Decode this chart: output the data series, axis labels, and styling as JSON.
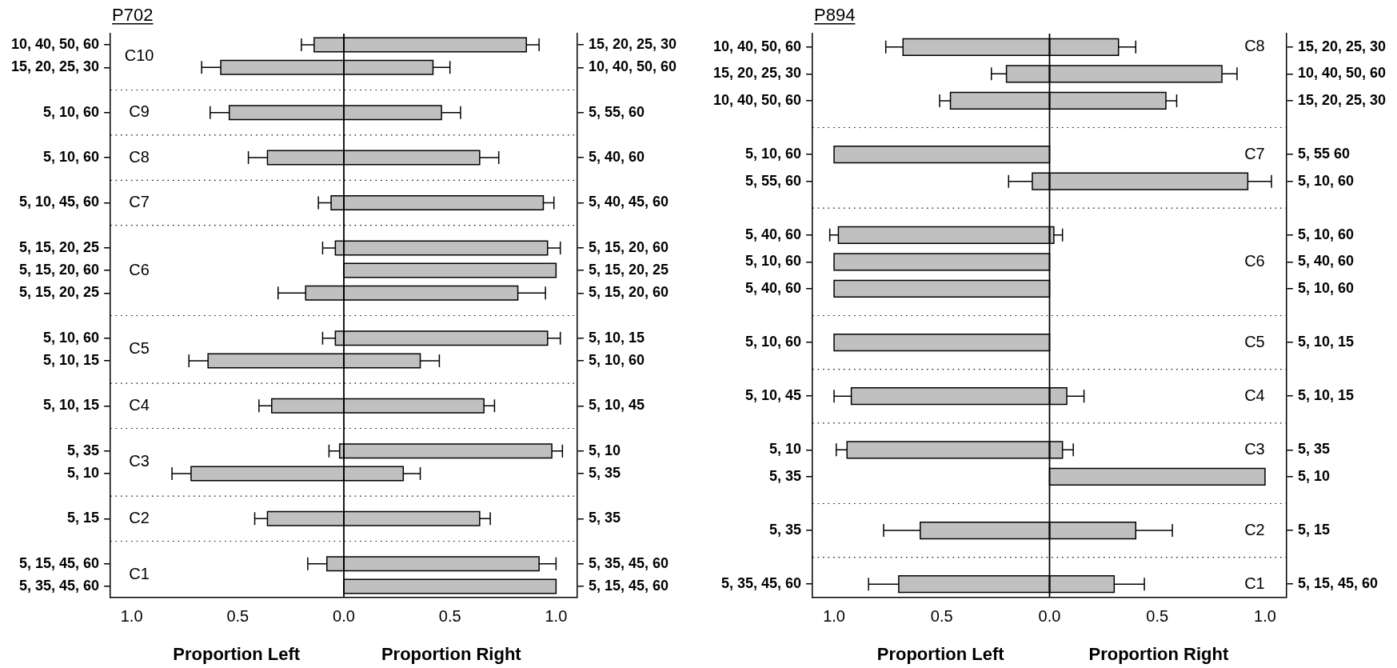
{
  "chart_data": [
    {
      "type": "bar",
      "orientation": "horizontal",
      "stacked": true,
      "title": "P702",
      "xlabel": "Proportion Left",
      "legend": false,
      "grid": false,
      "categories": [
        "10, 40, 50, 60",
        "15, 20, 25, 30",
        null,
        "5, 10, 60",
        null,
        "5, 10, 60",
        null,
        "5, 10, 45, 60",
        null,
        "5, 15, 20, 25",
        "5, 15, 20, 60",
        "5, 15, 20, 25",
        null,
        "5, 10, 60",
        "5, 10, 15",
        null,
        "5, 10, 15",
        null,
        "5, 35",
        "5, 10",
        null,
        "5, 15",
        null,
        "5, 15, 45, 60",
        "5, 35, 45, 60"
      ],
      "y2_categories": [
        "15, 20, 25, 30",
        "10, 40, 50, 60",
        null,
        "5, 55, 60",
        null,
        "5, 40, 60",
        null,
        "5, 40, 45, 60",
        null,
        "5, 15, 20, 60",
        "5, 15, 20, 25",
        "5, 15, 20, 60",
        null,
        "5, 10, 15",
        "5, 10, 60",
        null,
        "5, 10, 45",
        null,
        "5, 10",
        "5, 35",
        null,
        "5, 35",
        null,
        "5, 35, 45, 60",
        "5, 15, 45, 60"
      ],
      "series": [
        {
          "color": "#c0c0c0",
          "values": [
            -0.14,
            -0.58,
            null,
            -0.54,
            null,
            -0.36,
            null,
            -0.06,
            null,
            -0.04,
            0,
            -0.18,
            null,
            -0.04,
            -0.64,
            null,
            -0.34,
            null,
            -0.02,
            -0.72,
            null,
            -0.36,
            null,
            -0.08,
            0
          ],
          "errors": [
            [
              -0.2,
              -0.14
            ],
            [
              -0.67,
              -0.58
            ],
            null,
            [
              -0.63,
              -0.54
            ],
            null,
            [
              -0.45,
              -0.36
            ],
            null,
            [
              -0.12,
              -0.06
            ],
            null,
            [
              -0.1,
              -0.04
            ],
            null,
            [
              -0.31,
              -0.18
            ],
            null,
            [
              -0.1,
              -0.04
            ],
            [
              -0.73,
              -0.64
            ],
            null,
            [
              -0.4,
              -0.34
            ],
            null,
            [
              -0.07,
              -0.02
            ],
            [
              -0.81,
              -0.72
            ],
            null,
            [
              -0.42,
              -0.36
            ],
            null,
            [
              -0.17,
              -0.08
            ],
            null
          ]
        },
        {
          "color": "#c0c0c0",
          "values": [
            0.86,
            0.42,
            null,
            0.46,
            null,
            0.64,
            null,
            0.94,
            null,
            0.96,
            1.0,
            0.82,
            null,
            0.96,
            0.36,
            null,
            0.66,
            null,
            0.98,
            0.28,
            null,
            0.64,
            null,
            0.92,
            1.0
          ],
          "errors": [
            [
              0.86,
              0.92
            ],
            [
              0.42,
              0.5
            ],
            null,
            [
              0.46,
              0.55
            ],
            null,
            [
              0.64,
              0.73
            ],
            null,
            [
              0.94,
              0.99
            ],
            null,
            [
              0.96,
              1.02
            ],
            null,
            [
              0.82,
              0.95
            ],
            null,
            [
              0.96,
              1.02
            ],
            [
              0.36,
              0.45
            ],
            null,
            [
              0.66,
              0.71
            ],
            null,
            [
              0.98,
              1.03
            ],
            [
              0.28,
              0.36
            ],
            null,
            [
              0.64,
              0.69
            ],
            null,
            [
              0.92,
              1.0
            ],
            null
          ]
        }
      ],
      "xlim": [
        -1.1,
        1.1
      ],
      "xticks": [
        {
          "value": -1,
          "label": "1.0"
        },
        {
          "value": -0.5,
          "label": "0.5"
        },
        {
          "value": 0,
          "label": "0.0"
        },
        {
          "value": 0.5,
          "label": "0.5"
        },
        {
          "value": 1,
          "label": "1.0"
        }
      ],
      "ref_lines": [
        {
          "axis": "x",
          "value": 0
        }
      ],
      "annotations": [
        "Proportion Right",
        "C10",
        "C9",
        "C8",
        "C7",
        "C6",
        "C5",
        "C4",
        "C3",
        "C2",
        "C1"
      ]
    },
    {
      "type": "bar",
      "orientation": "horizontal",
      "stacked": true,
      "title": "P894",
      "xlabel": "Proportion Left",
      "legend": false,
      "grid": false,
      "categories": [
        "10, 40, 50, 60",
        "15, 20, 25, 30",
        "10, 40, 50, 60",
        null,
        "5, 10, 60",
        "5, 55, 60",
        null,
        "5, 40, 60",
        "5, 10, 60",
        "5, 40, 60",
        null,
        "5, 10, 60",
        null,
        "5, 10, 45",
        null,
        "5, 10",
        "5, 35",
        null,
        "5, 35",
        null,
        "5, 35, 45, 60"
      ],
      "y2_categories": [
        "15, 20, 25, 30",
        "10, 40, 50, 60",
        "15, 20, 25, 30",
        null,
        "5, 55 60",
        "5, 10, 60",
        null,
        "5, 10, 60",
        "5, 40, 60",
        "5, 10, 60",
        null,
        "5, 10, 15",
        null,
        "5, 10, 15",
        null,
        "5, 35",
        "5, 10",
        null,
        "5, 15",
        null,
        "5, 15, 45, 60"
      ],
      "series": [
        {
          "color": "#c0c0c0",
          "values": [
            -0.68,
            -0.2,
            -0.46,
            null,
            -1.0,
            -0.08,
            null,
            -0.98,
            -1.0,
            -1.0,
            null,
            -1.0,
            null,
            -0.92,
            null,
            -0.94,
            0,
            null,
            -0.6,
            null,
            -0.7
          ],
          "errors": [
            [
              -0.76,
              -0.68
            ],
            [
              -0.27,
              -0.2
            ],
            [
              -0.51,
              -0.46
            ],
            null,
            null,
            [
              -0.19,
              -0.08
            ],
            null,
            [
              -1.02,
              -0.98
            ],
            null,
            null,
            null,
            null,
            null,
            [
              -1.0,
              -0.92
            ],
            null,
            [
              -0.99,
              -0.94
            ],
            null,
            null,
            [
              -0.77,
              -0.6
            ],
            null,
            [
              -0.84,
              -0.7
            ]
          ]
        },
        {
          "color": "#c0c0c0",
          "values": [
            0.32,
            0.8,
            0.54,
            null,
            0,
            0.92,
            null,
            0.02,
            0,
            0,
            null,
            0,
            null,
            0.08,
            null,
            0.06,
            1.0,
            null,
            0.4,
            null,
            0.3
          ],
          "errors": [
            [
              0.32,
              0.4
            ],
            [
              0.8,
              0.87
            ],
            [
              0.54,
              0.59
            ],
            null,
            null,
            [
              0.92,
              1.03
            ],
            null,
            [
              0.02,
              0.06
            ],
            null,
            null,
            null,
            null,
            null,
            [
              0.08,
              0.16
            ],
            null,
            [
              0.06,
              0.11
            ],
            null,
            null,
            [
              0.4,
              0.57
            ],
            null,
            [
              0.3,
              0.44
            ]
          ]
        }
      ],
      "xlim": [
        -1.1,
        1.1
      ],
      "xticks": [
        {
          "value": -1,
          "label": "1.0"
        },
        {
          "value": -0.5,
          "label": "0.5"
        },
        {
          "value": 0,
          "label": "0.0"
        },
        {
          "value": 0.5,
          "label": "0.5"
        },
        {
          "value": 1,
          "label": "1.0"
        }
      ],
      "ref_lines": [
        {
          "axis": "x",
          "value": 0
        }
      ],
      "annotations": [
        "Proportion Right",
        "C8",
        "C7",
        "C6",
        "C5",
        "C4",
        "C3",
        "C2",
        "C1"
      ]
    }
  ]
}
